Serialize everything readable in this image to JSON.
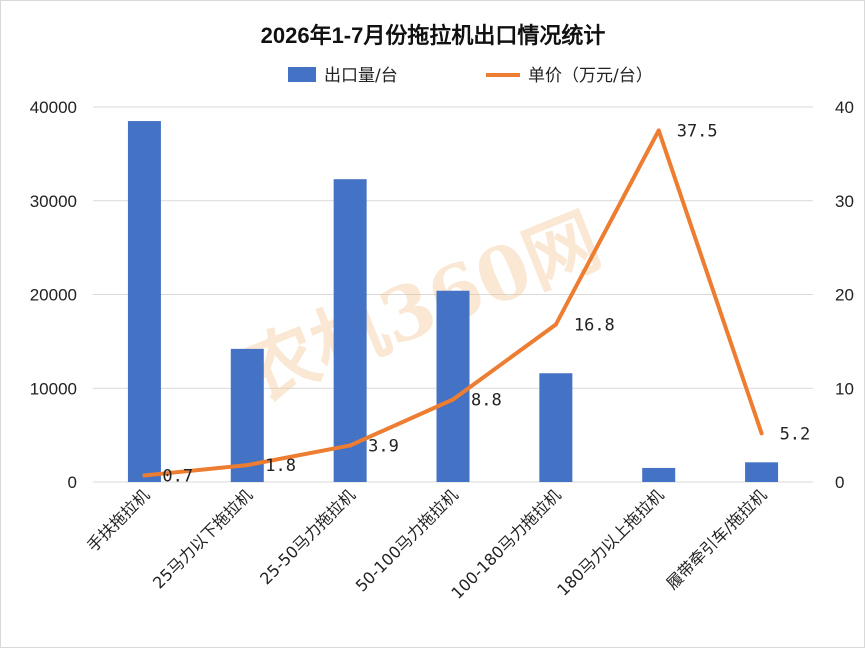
{
  "chart_data": {
    "type": "bar",
    "title": "2026年1-7月份拖拉机出口情况统计",
    "categories": [
      "手扶拖拉机",
      "25马力以下拖拉机",
      "25-50马力拖拉机",
      "50-100马力拖拉机",
      "100-180马力拖拉机",
      "180马力以上拖拉机",
      "履带牵引车/拖拉机"
    ],
    "series": [
      {
        "name": "出口量/台",
        "type": "bar",
        "axis": "left",
        "color": "#4472c4",
        "values": [
          38500,
          14200,
          32300,
          20400,
          11600,
          1500,
          2100
        ]
      },
      {
        "name": "单价（万元/台）",
        "type": "line",
        "axis": "right",
        "color": "#ed7d31",
        "values": [
          0.7,
          1.8,
          3.9,
          8.8,
          16.8,
          37.5,
          5.2
        ],
        "labels": [
          "0.7",
          "1.8",
          "3.9",
          "8.8",
          "16.8",
          "37.5",
          "5.2"
        ]
      }
    ],
    "y_left": {
      "min": 0,
      "max": 40000,
      "ticks": [
        0,
        10000,
        20000,
        30000,
        40000
      ]
    },
    "y_right": {
      "min": 0,
      "max": 40,
      "ticks": [
        0,
        10,
        20,
        30,
        40
      ]
    },
    "legend_position": "top-center",
    "grid": true
  },
  "watermark": {
    "text": "农机360网"
  }
}
